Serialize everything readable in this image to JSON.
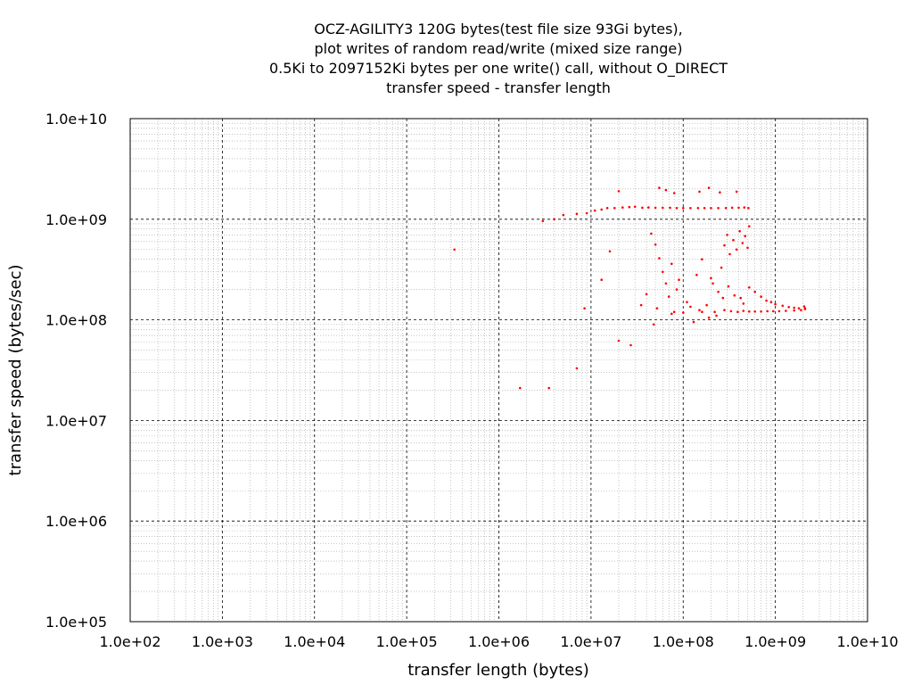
{
  "chart_data": {
    "type": "scatter",
    "title_lines": [
      "OCZ-AGILITY3 120G bytes(test file size 93Gi bytes),",
      "plot writes of random read/write (mixed size range)",
      "0.5Ki to 2097152Ki bytes per one write() call, without O_DIRECT",
      "transfer speed - transfer length"
    ],
    "xlabel": "transfer length (bytes)",
    "ylabel": "transfer speed (bytes/sec)",
    "xscale": "log",
    "yscale": "log",
    "xlim": [
      100,
      10000000000
    ],
    "ylim": [
      100000,
      10000000000
    ],
    "x_ticks": [
      {
        "value": 100,
        "label": "1.0e+02"
      },
      {
        "value": 1000,
        "label": "1.0e+03"
      },
      {
        "value": 10000,
        "label": "1.0e+04"
      },
      {
        "value": 100000,
        "label": "1.0e+05"
      },
      {
        "value": 1000000,
        "label": "1.0e+06"
      },
      {
        "value": 10000000,
        "label": "1.0e+07"
      },
      {
        "value": 100000000,
        "label": "1.0e+08"
      },
      {
        "value": 1000000000,
        "label": "1.0e+09"
      },
      {
        "value": 10000000000,
        "label": "1.0e+10"
      }
    ],
    "y_ticks": [
      {
        "value": 100000,
        "label": "1.0e+05"
      },
      {
        "value": 1000000,
        "label": "1.0e+06"
      },
      {
        "value": 10000000,
        "label": "1.0e+07"
      },
      {
        "value": 100000000,
        "label": "1.0e+08"
      },
      {
        "value": 1000000000,
        "label": "1.0e+09"
      },
      {
        "value": 10000000000,
        "label": "1.0e+10"
      }
    ],
    "grid": true,
    "series": [
      {
        "color": "#ff0000",
        "points": [
          [
            330000,
            500000000
          ],
          [
            1700000,
            21000000
          ],
          [
            3500000,
            21000000
          ],
          [
            7000000,
            33000000
          ],
          [
            8500000,
            130000000
          ],
          [
            13000000,
            250000000
          ],
          [
            16000000,
            480000000
          ],
          [
            20000000,
            62000000
          ],
          [
            27000000,
            56000000
          ],
          [
            3000000,
            960000000
          ],
          [
            4000000,
            1000000000
          ],
          [
            5000000,
            1100000000
          ],
          [
            7000000,
            1130000000
          ],
          [
            9000000,
            1150000000
          ],
          [
            11000000,
            1220000000
          ],
          [
            13000000,
            1250000000
          ],
          [
            15000000,
            1290000000
          ],
          [
            18000000,
            1290000000
          ],
          [
            22000000,
            1310000000
          ],
          [
            26000000,
            1320000000
          ],
          [
            30000000,
            1330000000
          ],
          [
            36000000,
            1300000000
          ],
          [
            42000000,
            1310000000
          ],
          [
            50000000,
            1300000000
          ],
          [
            60000000,
            1300000000
          ],
          [
            72000000,
            1300000000
          ],
          [
            85000000,
            1290000000
          ],
          [
            100000000,
            1290000000
          ],
          [
            120000000,
            1290000000
          ],
          [
            145000000,
            1290000000
          ],
          [
            170000000,
            1290000000
          ],
          [
            200000000,
            1290000000
          ],
          [
            240000000,
            1290000000
          ],
          [
            290000000,
            1290000000
          ],
          [
            340000000,
            1300000000
          ],
          [
            400000000,
            1300000000
          ],
          [
            460000000,
            1310000000
          ],
          [
            510000000,
            1290000000
          ],
          [
            20000000,
            1900000000
          ],
          [
            55000000,
            2050000000
          ],
          [
            65000000,
            1950000000
          ],
          [
            80000000,
            1820000000
          ],
          [
            150000000,
            1880000000
          ],
          [
            190000000,
            2050000000
          ],
          [
            250000000,
            1850000000
          ],
          [
            380000000,
            1880000000
          ],
          [
            45000000,
            720000000
          ],
          [
            50000000,
            560000000
          ],
          [
            55000000,
            410000000
          ],
          [
            60000000,
            300000000
          ],
          [
            65000000,
            230000000
          ],
          [
            70000000,
            170000000
          ],
          [
            80000000,
            120000000
          ],
          [
            90000000,
            250000000
          ],
          [
            35000000,
            140000000
          ],
          [
            40000000,
            180000000
          ],
          [
            48000000,
            90000000
          ],
          [
            52000000,
            130000000
          ],
          [
            75000000,
            360000000
          ],
          [
            85000000,
            200000000
          ],
          [
            110000000,
            150000000
          ],
          [
            130000000,
            95000000
          ],
          [
            140000000,
            280000000
          ],
          [
            160000000,
            400000000
          ],
          [
            180000000,
            140000000
          ],
          [
            210000000,
            230000000
          ],
          [
            230000000,
            110000000
          ],
          [
            260000000,
            330000000
          ],
          [
            280000000,
            550000000
          ],
          [
            300000000,
            700000000
          ],
          [
            320000000,
            450000000
          ],
          [
            350000000,
            620000000
          ],
          [
            380000000,
            500000000
          ],
          [
            410000000,
            760000000
          ],
          [
            440000000,
            580000000
          ],
          [
            470000000,
            680000000
          ],
          [
            500000000,
            520000000
          ],
          [
            520000000,
            850000000
          ],
          [
            200000000,
            260000000
          ],
          [
            240000000,
            190000000
          ],
          [
            270000000,
            165000000
          ],
          [
            310000000,
            215000000
          ],
          [
            360000000,
            175000000
          ],
          [
            420000000,
            165000000
          ],
          [
            450000000,
            145000000
          ],
          [
            520000000,
            210000000
          ],
          [
            600000000,
            190000000
          ],
          [
            700000000,
            170000000
          ],
          [
            800000000,
            155000000
          ],
          [
            900000000,
            150000000
          ],
          [
            1000000000,
            143000000
          ],
          [
            1200000000,
            138000000
          ],
          [
            1400000000,
            134000000
          ],
          [
            1600000000,
            132000000
          ],
          [
            1800000000,
            130000000
          ],
          [
            2100000000,
            128000000
          ],
          [
            220000000,
            120000000
          ],
          [
            280000000,
            125000000
          ],
          [
            330000000,
            122000000
          ],
          [
            390000000,
            120000000
          ],
          [
            450000000,
            123000000
          ],
          [
            520000000,
            121000000
          ],
          [
            600000000,
            121000000
          ],
          [
            700000000,
            121000000
          ],
          [
            820000000,
            122000000
          ],
          [
            950000000,
            122000000
          ],
          [
            1100000000,
            122000000
          ],
          [
            1300000000,
            123000000
          ],
          [
            1600000000,
            124000000
          ],
          [
            1900000000,
            125000000
          ],
          [
            2100000000,
            130000000
          ],
          [
            2050000000,
            136000000
          ],
          [
            160000000,
            120000000
          ],
          [
            190000000,
            105000000
          ],
          [
            150000000,
            125000000
          ],
          [
            120000000,
            135000000
          ],
          [
            100000000,
            118000000
          ],
          [
            75000000,
            115000000
          ]
        ]
      }
    ]
  }
}
